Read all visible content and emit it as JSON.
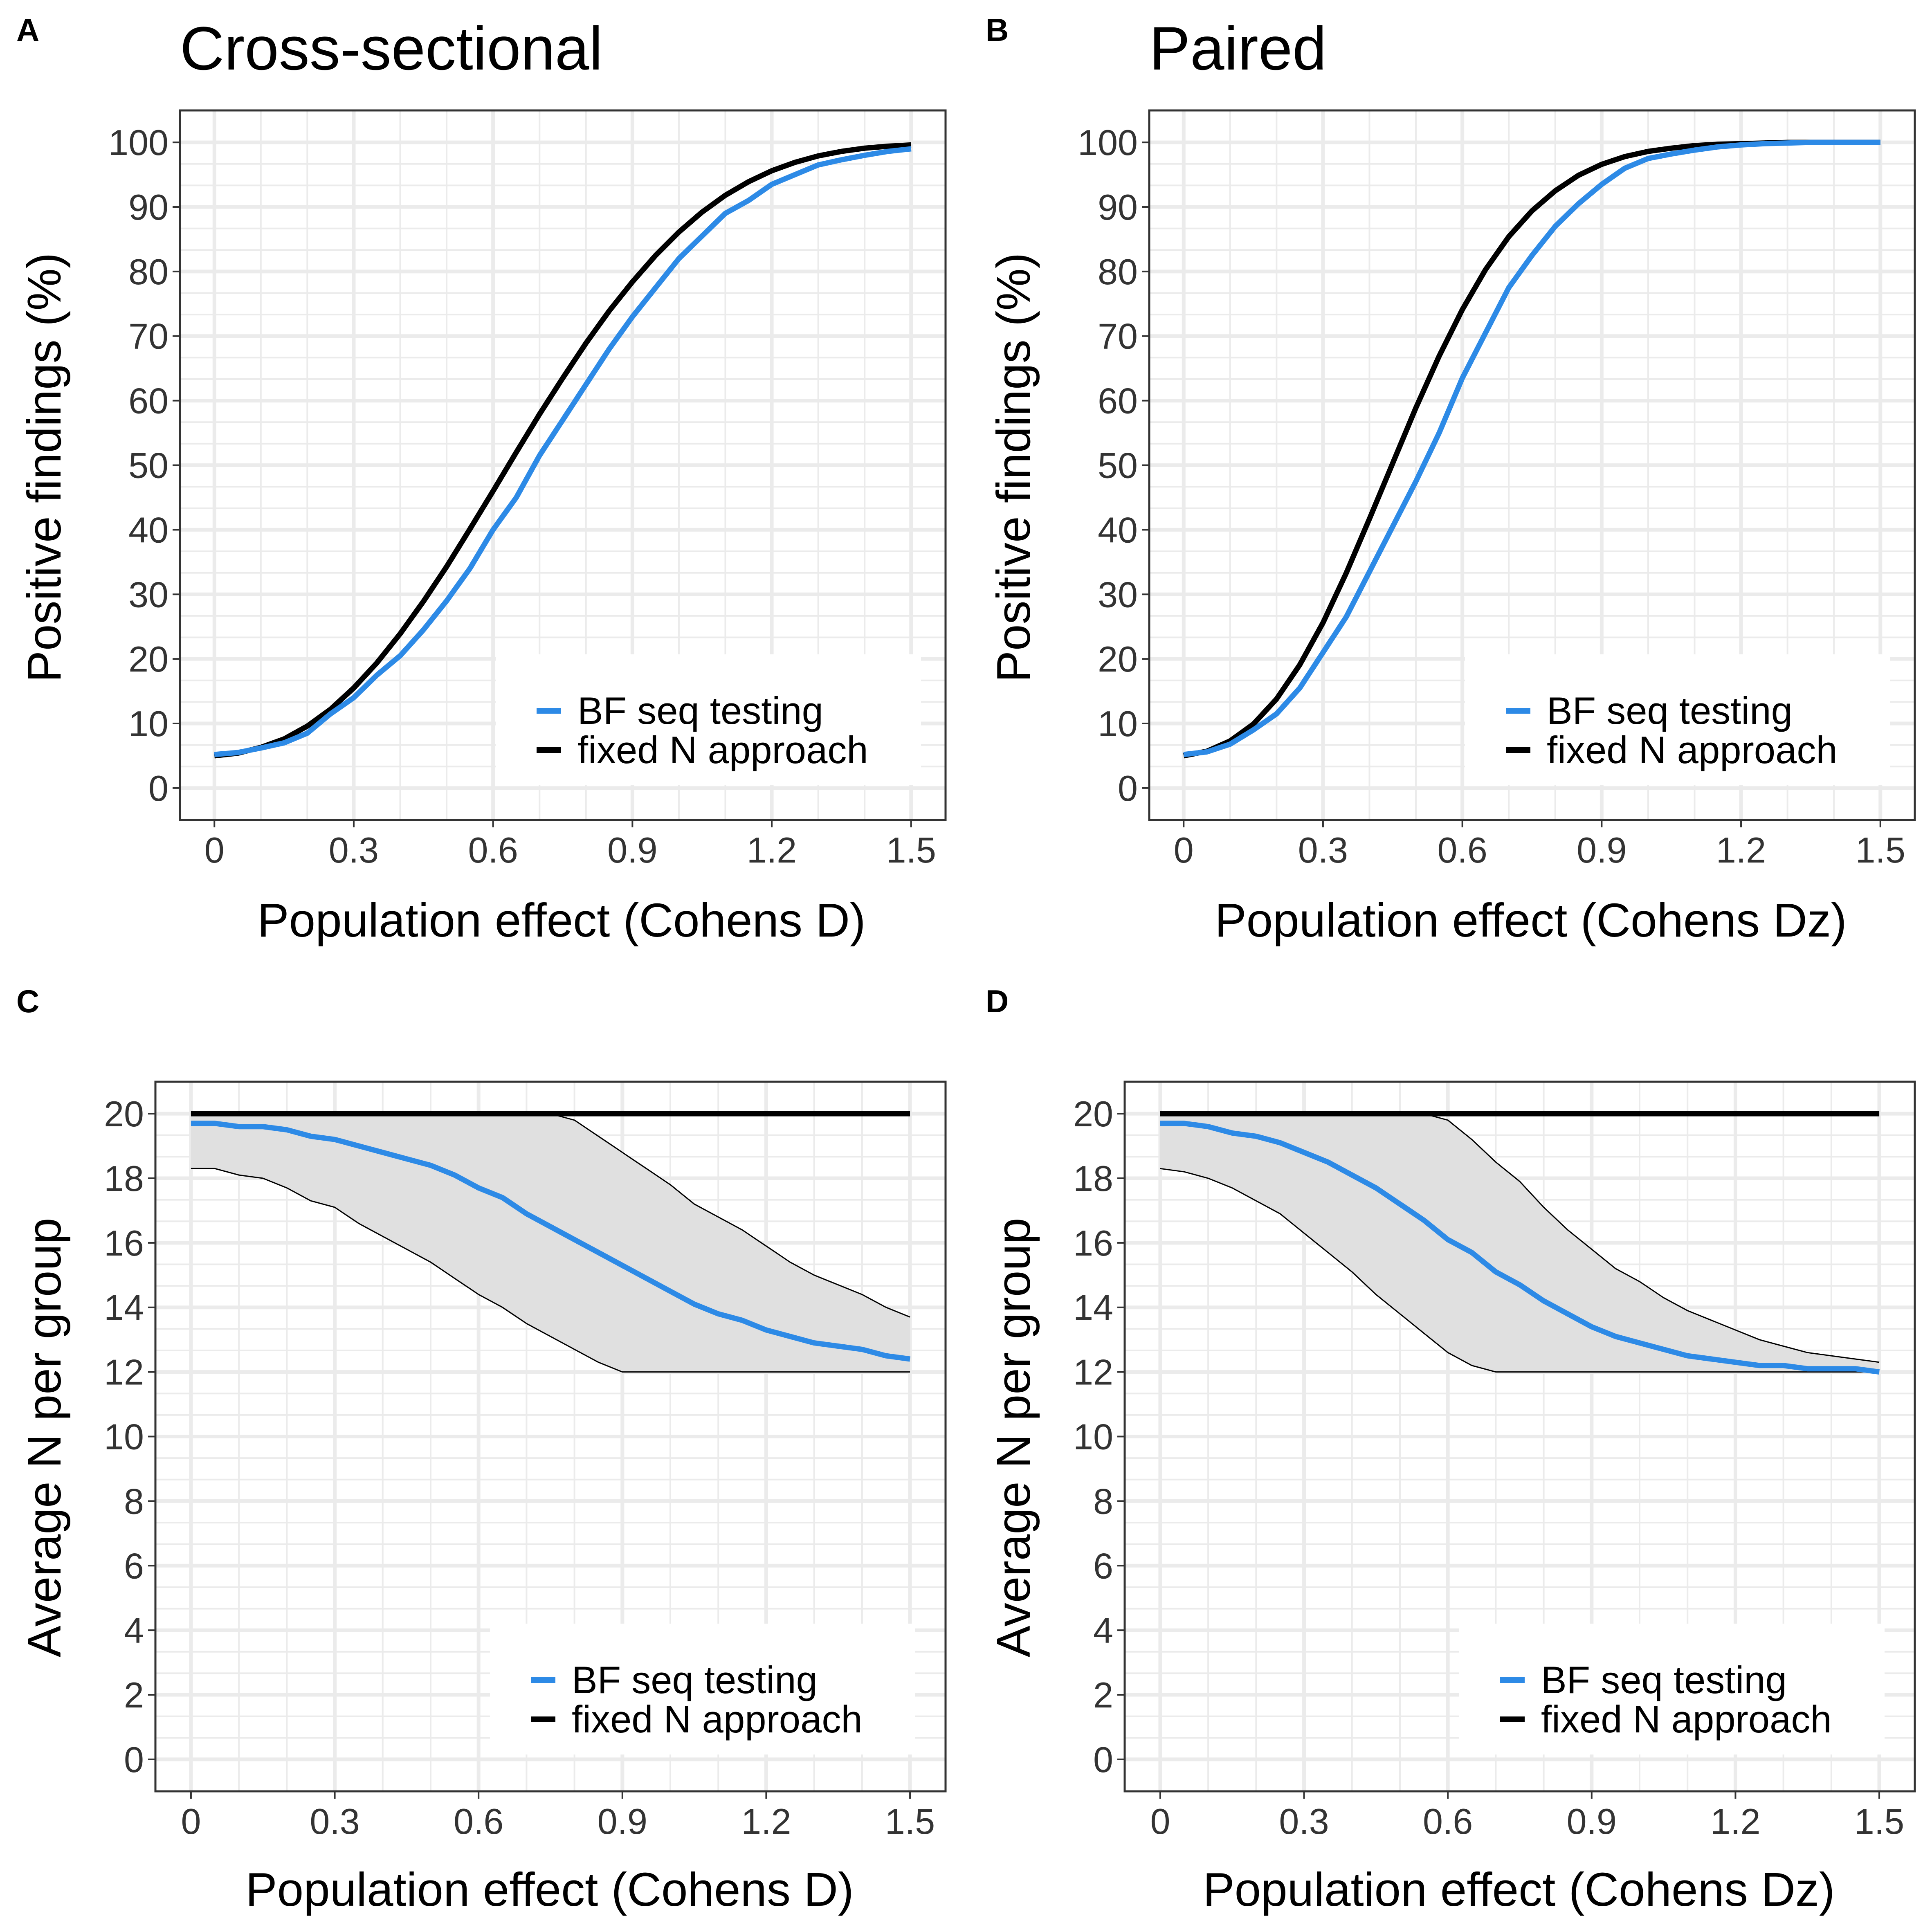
{
  "figure": {
    "panels": [
      {
        "letter": "A",
        "title": "Cross-sectional",
        "xlabel": "Population effect (Cohens D)",
        "ylabel": "Positive findings (%)",
        "legend": {
          "items": [
            "BF seq testing",
            "fixed N approach"
          ]
        }
      },
      {
        "letter": "B",
        "title": "Paired",
        "xlabel": "Population effect (Cohens Dz)",
        "ylabel": "Positive findings (%)",
        "legend": {
          "items": [
            "BF seq testing",
            "fixed N approach"
          ]
        }
      },
      {
        "letter": "C",
        "title": "",
        "xlabel": "Population effect (Cohens D)",
        "ylabel": "Average N per group",
        "legend": {
          "items": [
            "BF seq testing",
            "fixed N approach"
          ]
        }
      },
      {
        "letter": "D",
        "title": "",
        "xlabel": "Population effect (Cohens Dz)",
        "ylabel": "Average N per group",
        "legend": {
          "items": [
            "BF seq testing",
            "fixed N approach"
          ]
        }
      }
    ]
  },
  "colors": {
    "bf": "#2d8ae6",
    "fixed": "#000000",
    "ribbon": "#e0e0e0",
    "grid": "#ebebeb"
  },
  "chart_data": [
    {
      "type": "line",
      "title": "Cross-sectional",
      "xlabel": "Population effect (Cohens D)",
      "ylabel": "Positive findings (%)",
      "xlim": [
        0,
        1.5
      ],
      "ylim": [
        0,
        100
      ],
      "xticks": [
        "0",
        "0.3",
        "0.6",
        "0.9",
        "1.2",
        "1.5"
      ],
      "yticks": [
        "0",
        "10",
        "20",
        "30",
        "40",
        "50",
        "60",
        "70",
        "80",
        "90",
        "100"
      ],
      "grid": true,
      "legend_position": "bottom-right",
      "x": [
        0,
        0.05,
        0.1,
        0.15,
        0.2,
        0.25,
        0.3,
        0.35,
        0.4,
        0.45,
        0.5,
        0.55,
        0.6,
        0.65,
        0.7,
        0.75,
        0.8,
        0.85,
        0.9,
        0.95,
        1.0,
        1.05,
        1.1,
        1.15,
        1.2,
        1.25,
        1.3,
        1.35,
        1.4,
        1.45,
        1.5
      ],
      "series": [
        {
          "name": "BF seq testing",
          "values": [
            5.2,
            5.5,
            6.2,
            7.0,
            8.5,
            11.5,
            14.0,
            17.5,
            20.5,
            24.5,
            29.0,
            34.0,
            40.0,
            45.0,
            51.5,
            57.0,
            62.5,
            68.0,
            73.0,
            77.5,
            82.0,
            85.5,
            89.0,
            91.0,
            93.5,
            95.0,
            96.5,
            97.3,
            98.0,
            98.6,
            99.0
          ]
        },
        {
          "name": "fixed N approach",
          "values": [
            5.0,
            5.4,
            6.3,
            7.6,
            9.6,
            12.2,
            15.5,
            19.4,
            23.9,
            28.9,
            34.3,
            40.1,
            46.0,
            52.0,
            57.9,
            63.5,
            68.9,
            73.9,
            78.4,
            82.5,
            86.1,
            89.2,
            91.8,
            93.9,
            95.6,
            96.9,
            97.9,
            98.6,
            99.1,
            99.4,
            99.6
          ]
        }
      ]
    },
    {
      "type": "line",
      "title": "Paired",
      "xlabel": "Population effect (Cohens Dz)",
      "ylabel": "Positive findings (%)",
      "xlim": [
        0,
        1.5
      ],
      "ylim": [
        0,
        100
      ],
      "xticks": [
        "0",
        "0.3",
        "0.6",
        "0.9",
        "1.2",
        "1.5"
      ],
      "yticks": [
        "0",
        "10",
        "20",
        "30",
        "40",
        "50",
        "60",
        "70",
        "80",
        "90",
        "100"
      ],
      "grid": true,
      "legend_position": "bottom-right",
      "x": [
        0,
        0.05,
        0.1,
        0.15,
        0.2,
        0.25,
        0.3,
        0.35,
        0.4,
        0.45,
        0.5,
        0.55,
        0.6,
        0.65,
        0.7,
        0.75,
        0.8,
        0.85,
        0.9,
        0.95,
        1.0,
        1.05,
        1.1,
        1.15,
        1.2,
        1.25,
        1.3,
        1.35,
        1.4,
        1.45,
        1.5
      ],
      "series": [
        {
          "name": "BF seq testing",
          "values": [
            5.2,
            5.6,
            6.8,
            9.0,
            11.5,
            15.5,
            21.0,
            26.5,
            33.5,
            40.5,
            47.5,
            55.0,
            63.5,
            70.5,
            77.5,
            82.5,
            87.0,
            90.5,
            93.5,
            96.0,
            97.5,
            98.2,
            98.8,
            99.3,
            99.6,
            99.8,
            99.9,
            100,
            100,
            100,
            100
          ]
        },
        {
          "name": "fixed N approach",
          "values": [
            5.0,
            5.7,
            7.3,
            9.9,
            13.8,
            19.1,
            25.6,
            33.3,
            41.7,
            50.3,
            58.9,
            66.9,
            74.1,
            80.3,
            85.4,
            89.4,
            92.5,
            94.9,
            96.6,
            97.8,
            98.6,
            99.1,
            99.5,
            99.7,
            99.8,
            99.9,
            100,
            100,
            100,
            100,
            100
          ]
        }
      ]
    },
    {
      "type": "line",
      "title": "",
      "xlabel": "Population effect (Cohens D)",
      "ylabel": "Average N per group",
      "xlim": [
        0,
        1.5
      ],
      "ylim": [
        0,
        20
      ],
      "xticks": [
        "0",
        "0.3",
        "0.6",
        "0.9",
        "1.2",
        "1.5"
      ],
      "yticks": [
        "0",
        "2",
        "4",
        "6",
        "8",
        "10",
        "12",
        "14",
        "16",
        "18",
        "20"
      ],
      "grid": true,
      "legend_position": "bottom-right",
      "x": [
        0,
        0.05,
        0.1,
        0.15,
        0.2,
        0.25,
        0.3,
        0.35,
        0.4,
        0.45,
        0.5,
        0.55,
        0.6,
        0.65,
        0.7,
        0.75,
        0.8,
        0.85,
        0.9,
        0.95,
        1.0,
        1.05,
        1.1,
        1.15,
        1.2,
        1.25,
        1.3,
        1.35,
        1.4,
        1.45,
        1.5
      ],
      "series": [
        {
          "name": "BF seq testing",
          "values": [
            19.7,
            19.7,
            19.6,
            19.6,
            19.5,
            19.3,
            19.2,
            19.0,
            18.8,
            18.6,
            18.4,
            18.1,
            17.7,
            17.4,
            16.9,
            16.5,
            16.1,
            15.7,
            15.3,
            14.9,
            14.5,
            14.1,
            13.8,
            13.6,
            13.3,
            13.1,
            12.9,
            12.8,
            12.7,
            12.5,
            12.4
          ]
        },
        {
          "name": "fixed N approach",
          "values": [
            20,
            20,
            20,
            20,
            20,
            20,
            20,
            20,
            20,
            20,
            20,
            20,
            20,
            20,
            20,
            20,
            20,
            20,
            20,
            20,
            20,
            20,
            20,
            20,
            20,
            20,
            20,
            20,
            20,
            20,
            20
          ]
        }
      ],
      "ribbon": {
        "lower": [
          18.3,
          18.3,
          18.1,
          18.0,
          17.7,
          17.3,
          17.1,
          16.6,
          16.2,
          15.8,
          15.4,
          14.9,
          14.4,
          14.0,
          13.5,
          13.1,
          12.7,
          12.3,
          12.0,
          12.0,
          12.0,
          12.0,
          12.0,
          12.0,
          12.0,
          12.0,
          12.0,
          12.0,
          12.0,
          12.0,
          12.0
        ],
        "upper": [
          20,
          20,
          20,
          20,
          20,
          20,
          20,
          20,
          20,
          20,
          20,
          20,
          20,
          20,
          20,
          20,
          19.8,
          19.3,
          18.8,
          18.3,
          17.8,
          17.2,
          16.8,
          16.4,
          15.9,
          15.4,
          15.0,
          14.7,
          14.4,
          14.0,
          13.7
        ]
      }
    },
    {
      "type": "line",
      "title": "",
      "xlabel": "Population effect (Cohens Dz)",
      "ylabel": "Average N per group",
      "xlim": [
        0,
        1.5
      ],
      "ylim": [
        0,
        20
      ],
      "xticks": [
        "0",
        "0.3",
        "0.6",
        "0.9",
        "1.2",
        "1.5"
      ],
      "yticks": [
        "0",
        "2",
        "4",
        "6",
        "8",
        "10",
        "12",
        "14",
        "16",
        "18",
        "20"
      ],
      "grid": true,
      "legend_position": "bottom-right",
      "x": [
        0,
        0.05,
        0.1,
        0.15,
        0.2,
        0.25,
        0.3,
        0.35,
        0.4,
        0.45,
        0.5,
        0.55,
        0.6,
        0.65,
        0.7,
        0.75,
        0.8,
        0.85,
        0.9,
        0.95,
        1.0,
        1.05,
        1.1,
        1.15,
        1.2,
        1.25,
        1.3,
        1.35,
        1.4,
        1.45,
        1.5
      ],
      "series": [
        {
          "name": "BF seq testing",
          "values": [
            19.7,
            19.7,
            19.6,
            19.4,
            19.3,
            19.1,
            18.8,
            18.5,
            18.1,
            17.7,
            17.2,
            16.7,
            16.1,
            15.7,
            15.1,
            14.7,
            14.2,
            13.8,
            13.4,
            13.1,
            12.9,
            12.7,
            12.5,
            12.4,
            12.3,
            12.2,
            12.2,
            12.1,
            12.1,
            12.1,
            12.0
          ]
        },
        {
          "name": "fixed N approach",
          "values": [
            20,
            20,
            20,
            20,
            20,
            20,
            20,
            20,
            20,
            20,
            20,
            20,
            20,
            20,
            20,
            20,
            20,
            20,
            20,
            20,
            20,
            20,
            20,
            20,
            20,
            20,
            20,
            20,
            20,
            20,
            20
          ]
        }
      ],
      "ribbon": {
        "lower": [
          18.3,
          18.2,
          18.0,
          17.7,
          17.3,
          16.9,
          16.3,
          15.7,
          15.1,
          14.4,
          13.8,
          13.2,
          12.6,
          12.2,
          12.0,
          12.0,
          12.0,
          12.0,
          12.0,
          12.0,
          12.0,
          12.0,
          12.0,
          12.0,
          12.0,
          12.0,
          12.0,
          12.0,
          12.0,
          12.0,
          12.0
        ],
        "upper": [
          20,
          20,
          20,
          20,
          20,
          20,
          20,
          20,
          20,
          20,
          20,
          20,
          19.8,
          19.2,
          18.5,
          17.9,
          17.1,
          16.4,
          15.8,
          15.2,
          14.8,
          14.3,
          13.9,
          13.6,
          13.3,
          13.0,
          12.8,
          12.6,
          12.5,
          12.4,
          12.3
        ]
      }
    }
  ]
}
